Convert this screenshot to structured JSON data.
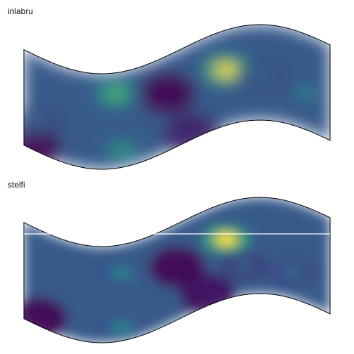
{
  "chart_data": [
    {
      "type": "heatmap",
      "title": "inlabru",
      "colormap": [
        "#440154",
        "#3b528b",
        "#21918c",
        "#5ec962",
        "#fde725"
      ],
      "field_hotspots": [
        {
          "u": 0.3,
          "v": 0.22,
          "value": 0.7
        },
        {
          "u": 0.66,
          "v": 0.42,
          "value": 1.0
        },
        {
          "u": 0.32,
          "v": 0.82,
          "value": 0.55
        },
        {
          "u": 0.92,
          "v": 0.62,
          "value": 0.45
        },
        {
          "u": 0.04,
          "v": 0.7,
          "value": 0.35
        },
        {
          "u": 0.78,
          "v": 0.55,
          "value": 0.35
        }
      ],
      "field_coldspots": [
        {
          "u": 0.47,
          "v": 0.4,
          "value": 0.0
        },
        {
          "u": 0.03,
          "v": 0.98,
          "value": 0.0
        },
        {
          "u": 0.55,
          "v": 0.95,
          "value": 0.1
        }
      ]
    },
    {
      "type": "heatmap",
      "title": "stelfi",
      "colormap": [
        "#440154",
        "#3b528b",
        "#21918c",
        "#5ec962",
        "#fde725"
      ],
      "field_hotspots": [
        {
          "u": 0.66,
          "v": 0.38,
          "value": 1.0
        },
        {
          "u": 0.32,
          "v": 0.3,
          "value": 0.45
        },
        {
          "u": 0.32,
          "v": 0.86,
          "value": 0.45
        },
        {
          "u": 0.88,
          "v": 0.72,
          "value": 0.35
        },
        {
          "u": 0.72,
          "v": 0.7,
          "value": 0.3
        }
      ],
      "field_coldspots": [
        {
          "u": 0.05,
          "v": 0.92,
          "value": 0.0
        },
        {
          "u": 0.5,
          "v": 0.45,
          "value": 0.0
        },
        {
          "u": 0.6,
          "v": 0.88,
          "value": 0.05
        }
      ]
    }
  ]
}
